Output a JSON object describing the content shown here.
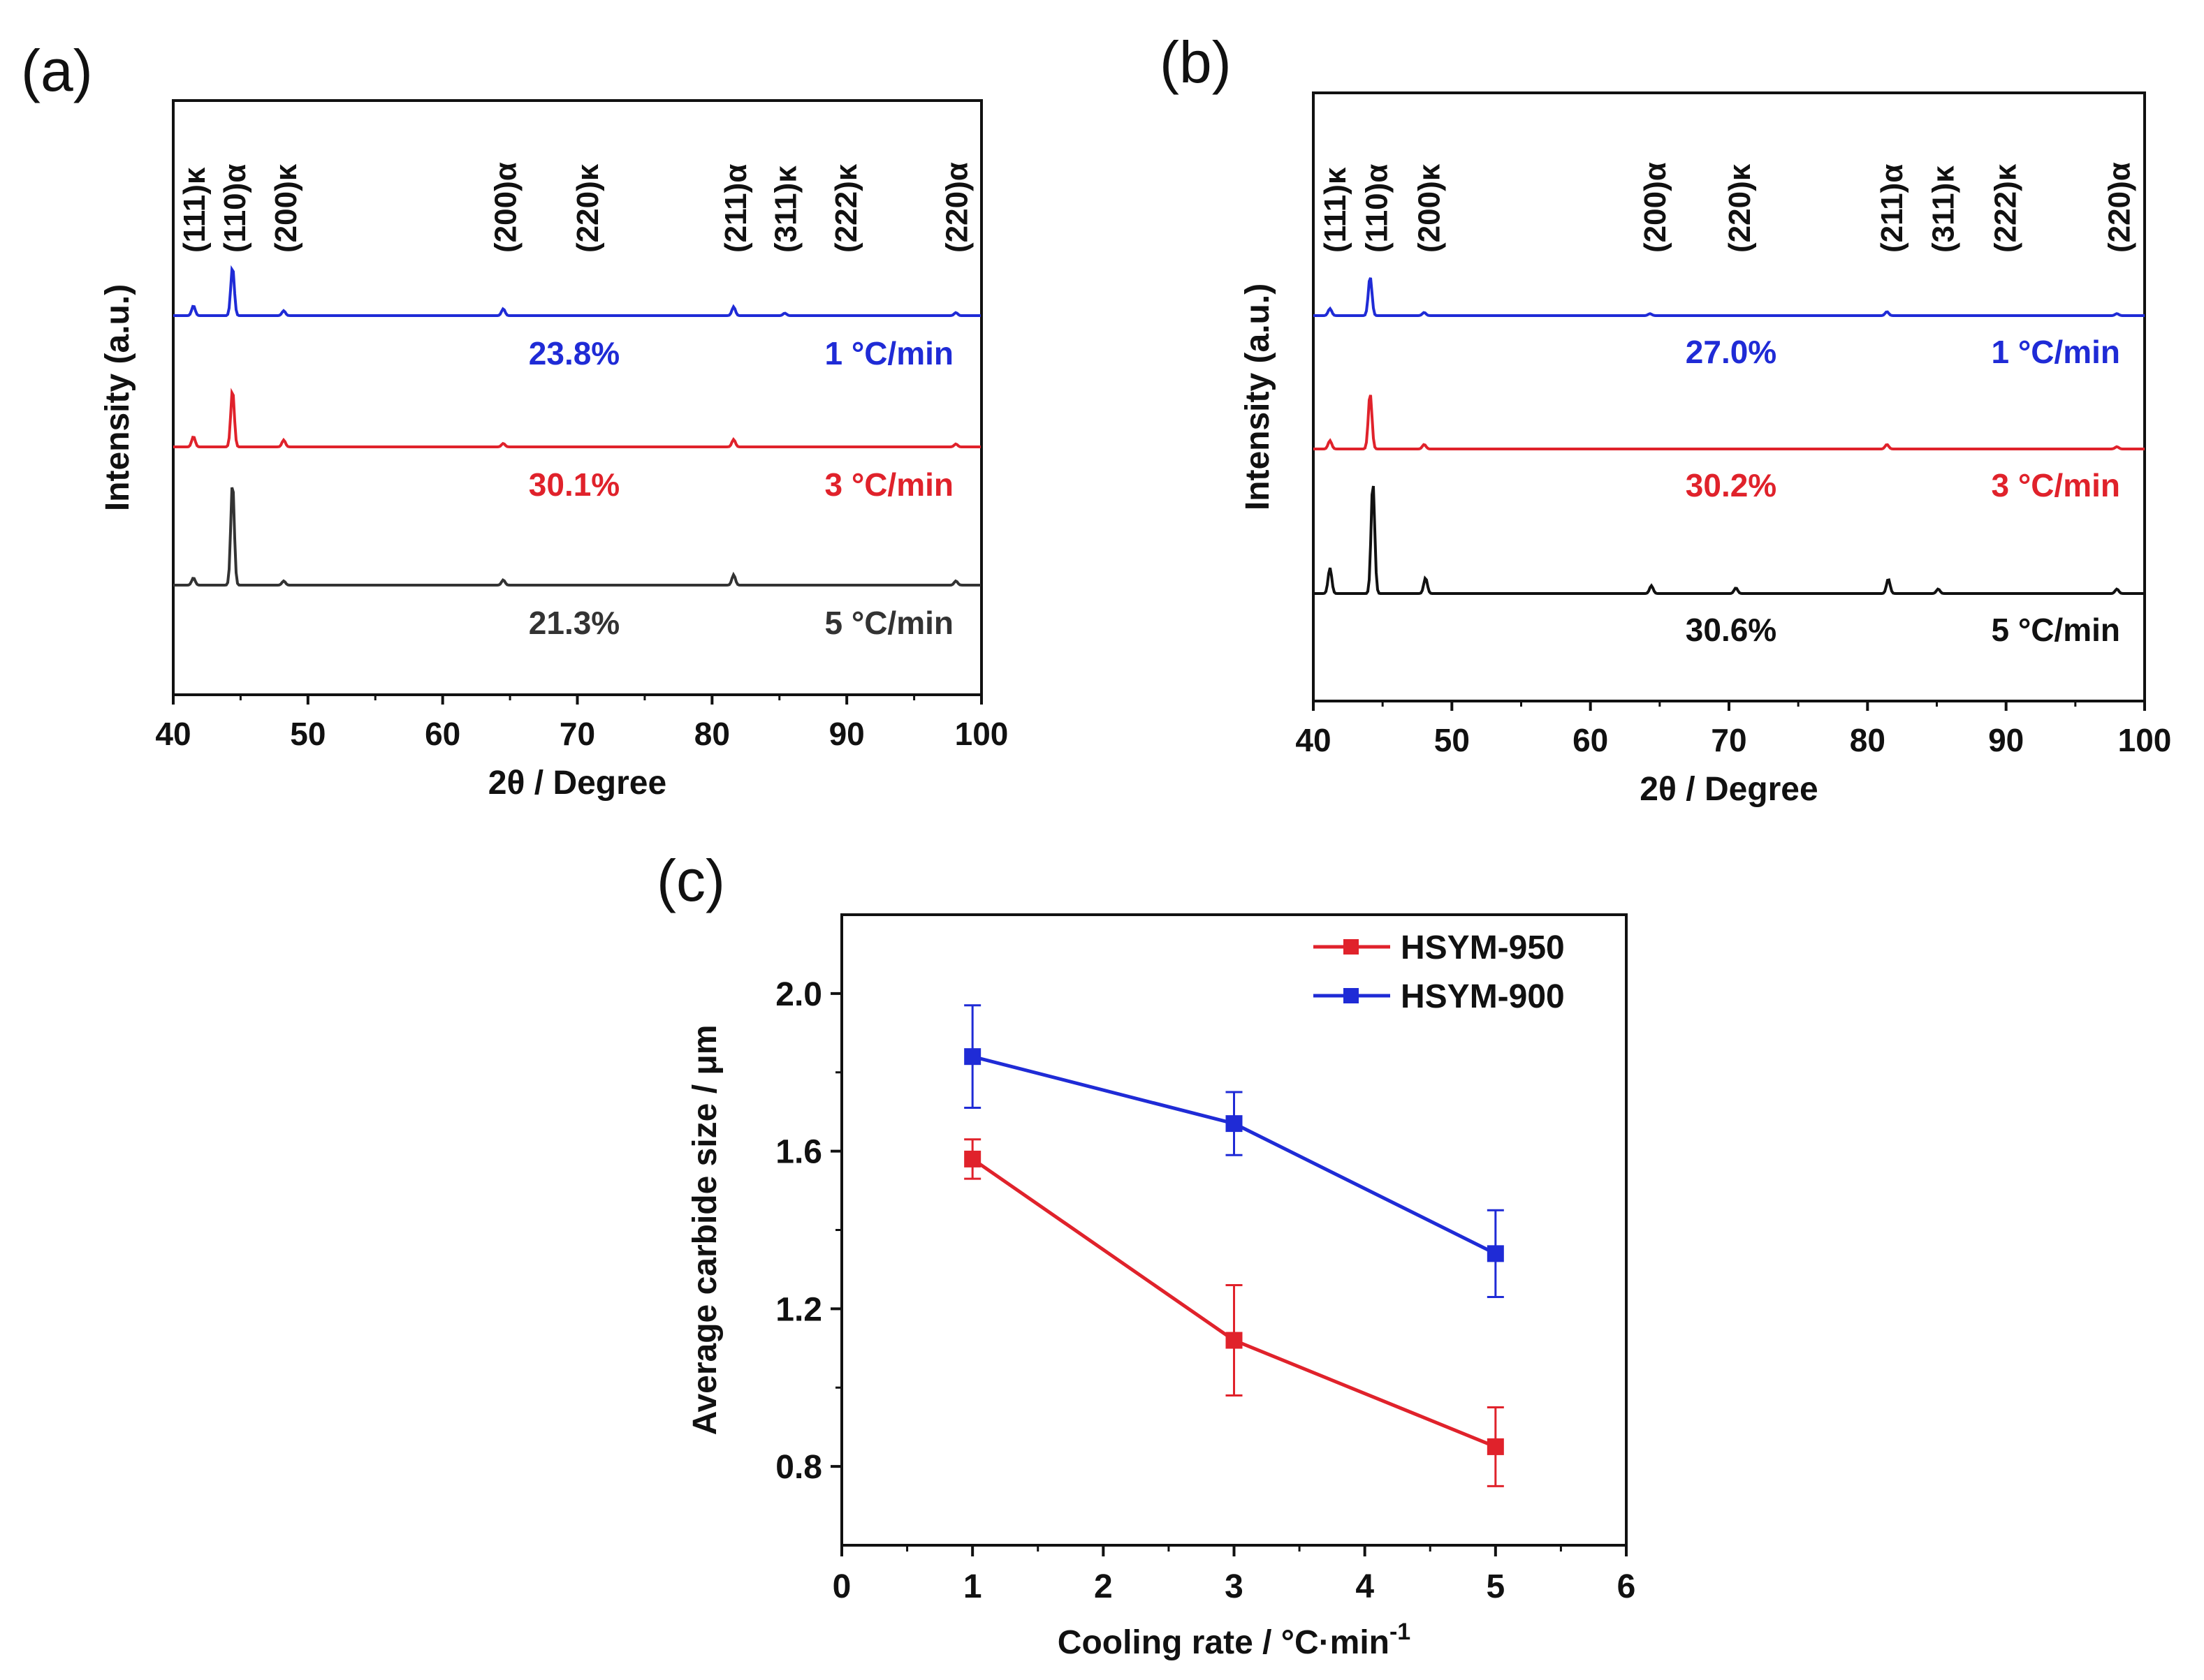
{
  "chart_data": [
    {
      "panel_label": "(a)",
      "type": "line",
      "xlabel": "2θ / Degree",
      "ylabel": "Intensity (a.u.)",
      "xlim": [
        40,
        100
      ],
      "x_ticks": [
        "40",
        "50",
        "60",
        "70",
        "80",
        "90",
        "100"
      ],
      "peak_labels": [
        {
          "text": "(111)κ",
          "pos": 41.5
        },
        {
          "text": "(110)α",
          "pos": 44.5
        },
        {
          "text": "(200)κ",
          "pos": 48.3
        },
        {
          "text": "(200)α",
          "pos": 64.6
        },
        {
          "text": "(220)κ",
          "pos": 70.7
        },
        {
          "text": "(211)α",
          "pos": 81.7
        },
        {
          "text": "(311)κ",
          "pos": 85.4
        },
        {
          "text": "(222)κ",
          "pos": 89.9
        },
        {
          "text": "(220)α",
          "pos": 98.1
        }
      ],
      "series": [
        {
          "name": "1 °C/min",
          "fraction": "23.8%",
          "color": "#1f2bd6",
          "peaks": [
            [
              41.5,
              0.2
            ],
            [
              44.4,
              1.0
            ],
            [
              48.2,
              0.1
            ],
            [
              64.5,
              0.14
            ],
            [
              81.6,
              0.18
            ],
            [
              85.4,
              0.05
            ],
            [
              98.1,
              0.06
            ]
          ]
        },
        {
          "name": "3 °C/min",
          "fraction": "30.1%",
          "color": "#e0222b",
          "peaks": [
            [
              41.5,
              0.18
            ],
            [
              44.4,
              1.0
            ],
            [
              48.2,
              0.12
            ],
            [
              64.5,
              0.06
            ],
            [
              81.6,
              0.13
            ],
            [
              98.1,
              0.05
            ]
          ]
        },
        {
          "name": "5 °C/min",
          "fraction": "21.3%",
          "color": "#333333",
          "peaks": [
            [
              41.5,
              0.07
            ],
            [
              44.4,
              1.0
            ],
            [
              48.2,
              0.04
            ],
            [
              64.5,
              0.05
            ],
            [
              81.6,
              0.1
            ],
            [
              98.1,
              0.04
            ]
          ]
        }
      ]
    },
    {
      "panel_label": "(b)",
      "type": "line",
      "xlabel": "2θ / Degree",
      "ylabel": "Intensity (a.u.)",
      "xlim": [
        40,
        100
      ],
      "x_ticks": [
        "40",
        "50",
        "60",
        "70",
        "80",
        "90",
        "100"
      ],
      "peak_labels": [
        {
          "text": "(111)κ",
          "pos": 41.5
        },
        {
          "text": "(110)α",
          "pos": 44.5
        },
        {
          "text": "(200)κ",
          "pos": 48.3
        },
        {
          "text": "(200)α",
          "pos": 64.6
        },
        {
          "text": "(220)κ",
          "pos": 70.7
        },
        {
          "text": "(211)α",
          "pos": 81.7
        },
        {
          "text": "(311)κ",
          "pos": 85.4
        },
        {
          "text": "(222)κ",
          "pos": 89.9
        },
        {
          "text": "(220)α",
          "pos": 98.1
        }
      ],
      "series": [
        {
          "name": "1 °C/min",
          "fraction": "27.0%",
          "color": "#1f2bd6",
          "peaks": [
            [
              41.2,
              0.18
            ],
            [
              44.1,
              1.0
            ],
            [
              48.0,
              0.08
            ],
            [
              64.3,
              0.05
            ],
            [
              81.4,
              0.1
            ],
            [
              98.0,
              0.05
            ]
          ]
        },
        {
          "name": "3 °C/min",
          "fraction": "30.2%",
          "color": "#e0222b",
          "peaks": [
            [
              41.2,
              0.15
            ],
            [
              44.1,
              1.0
            ],
            [
              48.0,
              0.08
            ],
            [
              81.4,
              0.08
            ],
            [
              98.0,
              0.04
            ]
          ]
        },
        {
          "name": "5 °C/min",
          "fraction": "30.6%",
          "color": "#111111",
          "peaks": [
            [
              41.2,
              0.23
            ],
            [
              44.3,
              1.0
            ],
            [
              48.1,
              0.14
            ],
            [
              64.4,
              0.07
            ],
            [
              70.5,
              0.05
            ],
            [
              81.5,
              0.13
            ],
            [
              85.1,
              0.04
            ],
            [
              98.0,
              0.04
            ]
          ]
        }
      ]
    },
    {
      "panel_label": "(c)",
      "type": "line",
      "xlabel": "Cooling rate / °C·min",
      "xlabel_sup": "-1",
      "ylabel": "Average carbide size / μm",
      "xlim": [
        0,
        6
      ],
      "ylim": [
        0.6,
        2.2
      ],
      "x_ticks": [
        "0",
        "1",
        "2",
        "3",
        "4",
        "5",
        "6"
      ],
      "y_ticks": [
        "0.8",
        "1.2",
        "1.6",
        "2.0"
      ],
      "legend_position": "top-right",
      "series": [
        {
          "name": "HSYM-950",
          "color": "#e0222b",
          "x": [
            1,
            3,
            5
          ],
          "y": [
            1.58,
            1.12,
            0.85
          ],
          "err": [
            0.05,
            0.14,
            0.1
          ]
        },
        {
          "name": "HSYM-900",
          "color": "#1f2bd6",
          "x": [
            1,
            3,
            5
          ],
          "y": [
            1.84,
            1.67,
            1.34
          ],
          "err": [
            0.13,
            0.08,
            0.11
          ]
        }
      ]
    }
  ]
}
